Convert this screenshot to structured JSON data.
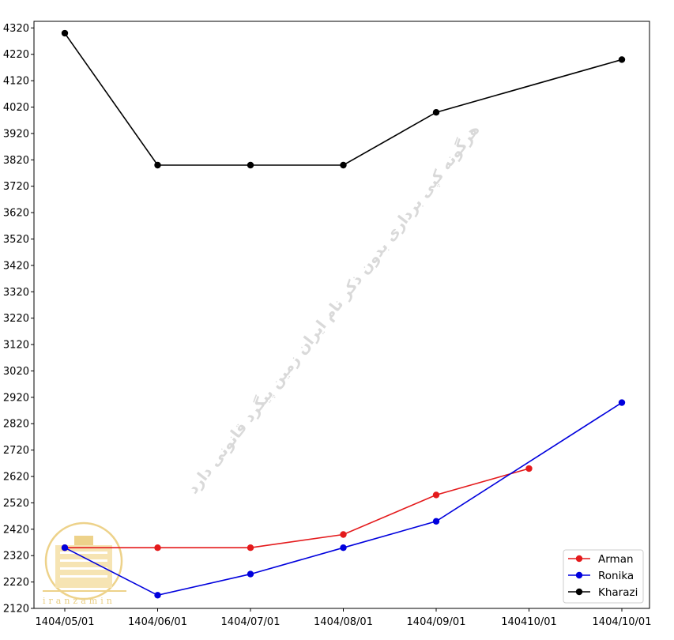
{
  "chart_data": {
    "type": "line",
    "categories": [
      "1404/05/01",
      "1404/06/01",
      "1404/07/01",
      "1404/08/01",
      "1404/09/01",
      "140410/01",
      "1404/10/01"
    ],
    "series": [
      {
        "name": "Arman",
        "color": "#e41a1c",
        "values": [
          2350,
          2350,
          2350,
          2400,
          2550,
          2650,
          null
        ]
      },
      {
        "name": "Ronika",
        "color": "#0000dd",
        "values": [
          2350,
          2170,
          2250,
          2350,
          2450,
          null,
          2900
        ]
      },
      {
        "name": "Kharazi",
        "color": "#000000",
        "values": [
          4300,
          3800,
          3800,
          3800,
          4000,
          null,
          4200
        ]
      }
    ],
    "yticks": [
      2120,
      2220,
      2320,
      2420,
      2520,
      2620,
      2720,
      2820,
      2920,
      3020,
      3120,
      3220,
      3320,
      3420,
      3520,
      3620,
      3720,
      3820,
      3920,
      4020,
      4120,
      4220,
      4320
    ],
    "ylim": [
      2120,
      4345
    ],
    "grid": false,
    "legend_position": "lower-right",
    "title": "",
    "xlabel": "",
    "ylabel": ""
  },
  "watermark": "هرگونه کپی برداری بدون ذکر نام ایران زمین پیگرد قانونی دارد",
  "logo": {
    "text": "iranzamin",
    "color": "#e0bb55"
  }
}
